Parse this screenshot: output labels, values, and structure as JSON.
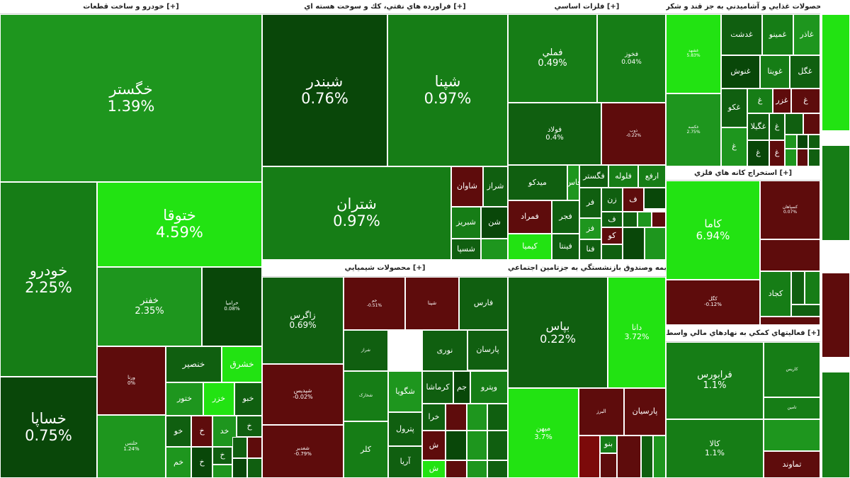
{
  "colors": {
    "strong_up": "#22e312",
    "mid_up": "#1e961e",
    "up": "#167d16",
    "slight_up": "#105f10",
    "dark_up": "#094709",
    "down": "#5e0c0c",
    "strong_down": "#7c0a0a",
    "header_bg": "#ffffff",
    "header_text": "#222222"
  },
  "chart_data": {
    "type": "treemap",
    "sectors": [
      {
        "name": "خودرو و ساخت قطعات [+]",
        "tiles": [
          {
            "symbol": "خگستر",
            "change": "1.39%",
            "color": "mid_up"
          },
          {
            "symbol": "خودرو",
            "change": "2.25%",
            "color": "up"
          },
          {
            "symbol": "ختوقا",
            "change": "4.59%",
            "color": "strong_up"
          },
          {
            "symbol": "خفنر",
            "change": "2.35%",
            "color": "mid_up"
          },
          {
            "symbol": "خرامیا",
            "change": "0.08%",
            "color": "dark_up"
          },
          {
            "symbol": "خساپا",
            "change": "0.75%",
            "color": "dark_up"
          },
          {
            "symbol": "ورنا",
            "change": "0%",
            "color": "down"
          },
          {
            "symbol": "خنصیر",
            "change": "",
            "color": "slight_up"
          },
          {
            "symbol": "خشرق",
            "change": "",
            "color": "strong_up"
          },
          {
            "symbol": "ختور",
            "change": "",
            "color": "mid_up"
          },
          {
            "symbol": "خزر",
            "change": "",
            "color": "strong_up"
          },
          {
            "symbol": "خبو",
            "change": "",
            "color": "slight_up"
          },
          {
            "symbol": "خلنس",
            "change": "1.24%",
            "color": "mid_up"
          },
          {
            "symbol": "خو",
            "change": "",
            "color": "slight_up"
          },
          {
            "symbol": "خ",
            "change": "",
            "color": "down"
          },
          {
            "symbol": "خد",
            "change": "",
            "color": "mid_up"
          },
          {
            "symbol": "خ",
            "change": "",
            "color": "slight_up"
          },
          {
            "symbol": "خم",
            "change": "",
            "color": "mid_up"
          },
          {
            "symbol": "خ",
            "change": "",
            "color": "dark_up"
          },
          {
            "symbol": "خ",
            "change": "",
            "color": "slight_up"
          },
          {
            "symbol": "",
            "change": "",
            "color": "slight_up"
          },
          {
            "symbol": "",
            "change": "",
            "color": "down"
          },
          {
            "symbol": "",
            "change": "",
            "color": "mid_up"
          },
          {
            "symbol": "",
            "change": "",
            "color": "dark_up"
          },
          {
            "symbol": "",
            "change": "",
            "color": "slight_up"
          },
          {
            "symbol": "",
            "change": "",
            "color": "mid_up"
          },
          {
            "symbol": "",
            "change": "",
            "color": "strong_up"
          },
          {
            "symbol": "",
            "change": "",
            "color": "down"
          },
          {
            "symbol": "",
            "change": "",
            "color": "slight_up"
          },
          {
            "symbol": "",
            "change": "",
            "color": "mid_up"
          },
          {
            "symbol": "",
            "change": "",
            "color": "dark_up"
          }
        ]
      },
      {
        "name": "فراورده هاي نفتي، كك و سوخت هسته اي [+]",
        "tiles": [
          {
            "symbol": "شبندر",
            "change": "0.76%",
            "color": "dark_up"
          },
          {
            "symbol": "شپنا",
            "change": "0.97%",
            "color": "up"
          },
          {
            "symbol": "شتران",
            "change": "0.97%",
            "color": "up"
          },
          {
            "symbol": "شاوان",
            "change": "",
            "color": "down"
          },
          {
            "symbol": "شراز",
            "change": "",
            "color": "slight_up"
          },
          {
            "symbol": "شبریز",
            "change": "",
            "color": "up"
          },
          {
            "symbol": "شن",
            "change": "",
            "color": "dark_up"
          },
          {
            "symbol": "شسپا",
            "change": "",
            "color": "slight_up"
          },
          {
            "symbol": "",
            "change": "",
            "color": "mid_up"
          }
        ]
      },
      {
        "name": "فلزات اساسي [+]",
        "tiles": [
          {
            "symbol": "فملي",
            "change": "0.49%",
            "color": "up"
          },
          {
            "symbol": "فخوز",
            "change": "0.04%",
            "color": "up"
          },
          {
            "symbol": "فولاد",
            "change": "0.4%",
            "color": "slight_up"
          },
          {
            "symbol": "ذوب",
            "change": "-0.22%",
            "color": "down"
          },
          {
            "symbol": "میدکو",
            "change": "",
            "color": "slight_up"
          },
          {
            "symbol": "فاس",
            "change": "",
            "color": "mid_up"
          },
          {
            "symbol": "فگستر",
            "change": "",
            "color": "slight_up"
          },
          {
            "symbol": "فلوله",
            "change": "",
            "color": "up"
          },
          {
            "symbol": "ارفع",
            "change": "",
            "color": "up"
          },
          {
            "symbol": "فمراد",
            "change": "",
            "color": "down"
          },
          {
            "symbol": "فجر",
            "change": "",
            "color": "slight_up"
          },
          {
            "symbol": "كيميا",
            "change": "",
            "color": "strong_up"
          },
          {
            "symbol": "فينتا",
            "change": "",
            "color": "slight_up"
          },
          {
            "symbol": "فر",
            "change": "",
            "color": "slight_up"
          },
          {
            "symbol": "زن",
            "change": "",
            "color": "slight_up"
          },
          {
            "symbol": "فز",
            "change": "",
            "color": "mid_up"
          },
          {
            "symbol": "فنا",
            "change": "",
            "color": "slight_up"
          },
          {
            "symbol": "ف",
            "change": "",
            "color": "down"
          },
          {
            "symbol": "ف",
            "change": "",
            "color": "slight_up"
          },
          {
            "symbol": "كو",
            "change": "",
            "color": "down"
          },
          {
            "symbol": "",
            "change": "",
            "color": "dark_up"
          },
          {
            "symbol": "",
            "change": "",
            "color": "slight_up"
          },
          {
            "symbol": "",
            "change": "",
            "color": "mid_up"
          },
          {
            "symbol": "",
            "change": "",
            "color": "down"
          },
          {
            "symbol": "",
            "change": "",
            "color": "slight_up"
          },
          {
            "symbol": "",
            "change": "",
            "color": "dark_up"
          },
          {
            "symbol": "",
            "change": "",
            "color": "mid_up"
          }
        ]
      },
      {
        "name": "محصولات غذايي و آشاميدني به جز قند و شكر [+]",
        "tiles": [
          {
            "symbol": "غشهد",
            "change": "5.83%",
            "color": "strong_up"
          },
          {
            "symbol": "غدشت",
            "change": "",
            "color": "slight_up"
          },
          {
            "symbol": "غمینو",
            "change": "",
            "color": "up"
          },
          {
            "symbol": "غاذر",
            "change": "",
            "color": "mid_up"
          },
          {
            "symbol": "غنوش",
            "change": "",
            "color": "dark_up"
          },
          {
            "symbol": "غويتا",
            "change": "",
            "color": "up"
          },
          {
            "symbol": "غگل",
            "change": "",
            "color": "slight_up"
          },
          {
            "symbol": "غكو",
            "change": "",
            "color": "slight_up"
          },
          {
            "symbol": "غ",
            "change": "",
            "color": "up"
          },
          {
            "symbol": "غزر",
            "change": "",
            "color": "down"
          },
          {
            "symbol": "غ",
            "change": "",
            "color": "down"
          },
          {
            "symbol": "غگیلا",
            "change": "",
            "color": "slight_up"
          },
          {
            "symbol": "غ",
            "change": "",
            "color": "slight_up"
          },
          {
            "symbol": "غكسه",
            "change": "2.75%",
            "color": "mid_up"
          },
          {
            "symbol": "غ",
            "change": "",
            "color": "mid_up"
          },
          {
            "symbol": "غ",
            "change": "",
            "color": "dark_up"
          },
          {
            "symbol": "غ",
            "change": "",
            "color": "down"
          },
          {
            "symbol": "",
            "change": "",
            "color": "slight_up"
          },
          {
            "symbol": "",
            "change": "",
            "color": "down"
          },
          {
            "symbol": "",
            "change": "",
            "color": "mid_up"
          },
          {
            "symbol": "",
            "change": "",
            "color": "dark_up"
          },
          {
            "symbol": "",
            "change": "",
            "color": "slight_up"
          },
          {
            "symbol": "",
            "change": "",
            "color": "mid_up"
          },
          {
            "symbol": "",
            "change": "",
            "color": "down"
          },
          {
            "symbol": "",
            "change": "",
            "color": "slight_up"
          }
        ]
      },
      {
        "name": "استخراج كانه هاي فلزي [+]",
        "tiles": [
          {
            "symbol": "كاما",
            "change": "6.94%",
            "color": "strong_up"
          },
          {
            "symbol": "کسپاهان",
            "change": "0.07%",
            "color": "down"
          },
          {
            "symbol": "",
            "change": "",
            "color": "down"
          },
          {
            "symbol": "كگل",
            "change": "-0.12%",
            "color": "down"
          },
          {
            "symbol": "كجاد",
            "change": "",
            "color": "up"
          },
          {
            "symbol": "",
            "change": "",
            "color": "slight_up"
          },
          {
            "symbol": "",
            "change": "",
            "color": "up"
          },
          {
            "symbol": "",
            "change": "",
            "color": "slight_up"
          },
          {
            "symbol": "",
            "change": "",
            "color": "down"
          }
        ]
      },
      {
        "name": "محصولات شيميايي [+]",
        "tiles": [
          {
            "symbol": "زاگرس",
            "change": "0.69%",
            "color": "slight_up"
          },
          {
            "symbol": "شپدیس",
            "change": "-0.02%",
            "color": "down"
          },
          {
            "symbol": "شغدیر",
            "change": "-0.79%",
            "color": "down"
          },
          {
            "symbol": "جم",
            "change": "-0.51%",
            "color": "down"
          },
          {
            "symbol": "شپنا",
            "change": "",
            "color": "down"
          },
          {
            "symbol": "فارس",
            "change": "",
            "color": "slight_up"
          },
          {
            "symbol": "شراز",
            "change": "",
            "color": "slight_up"
          },
          {
            "symbol": "پارسان",
            "change": "",
            "color": "slight_up"
          },
          {
            "symbol": "نوری",
            "change": "",
            "color": "slight_up"
          },
          {
            "symbol": "شگويا",
            "change": "",
            "color": "mid_up"
          },
          {
            "symbol": "كرماشا",
            "change": "",
            "color": "slight_up"
          },
          {
            "symbol": "جم",
            "change": "",
            "color": "dark_up"
          },
          {
            "symbol": "وپترو",
            "change": "",
            "color": "up"
          },
          {
            "symbol": "شخارک",
            "change": "",
            "color": "up"
          },
          {
            "symbol": "پترول",
            "change": "",
            "color": "slight_up"
          },
          {
            "symbol": "کلر",
            "change": "",
            "color": "up"
          },
          {
            "symbol": "آريا",
            "change": "",
            "color": "slight_up"
          },
          {
            "symbol": "خرا",
            "change": "",
            "color": "slight_up"
          },
          {
            "symbol": "ش",
            "change": "",
            "color": "down"
          },
          {
            "symbol": "ش",
            "change": "",
            "color": "strong_up"
          },
          {
            "symbol": "",
            "change": "",
            "color": "down"
          },
          {
            "symbol": "",
            "change": "",
            "color": "mid_up"
          },
          {
            "symbol": "",
            "change": "",
            "color": "slight_up"
          },
          {
            "symbol": "",
            "change": "",
            "color": "dark_up"
          },
          {
            "symbol": "",
            "change": "",
            "color": "mid_up"
          },
          {
            "symbol": "",
            "change": "",
            "color": "slight_up"
          },
          {
            "symbol": "",
            "change": "",
            "color": "down"
          },
          {
            "symbol": "",
            "change": "",
            "color": "mid_up"
          },
          {
            "symbol": "",
            "change": "",
            "color": "slight_up"
          }
        ]
      },
      {
        "name": "بيمه وصندوق بازنشستگي به جزتامين اجتماعي [+]",
        "tiles": [
          {
            "symbol": "بپاس",
            "change": "0.22%",
            "color": "slight_up"
          },
          {
            "symbol": "دانا",
            "change": "3.72%",
            "color": "strong_up"
          },
          {
            "symbol": "میهن",
            "change": "3.7%",
            "color": "strong_up"
          },
          {
            "symbol": "البرز",
            "change": "",
            "color": "down"
          },
          {
            "symbol": "پارسيان",
            "change": "",
            "color": "down"
          },
          {
            "symbol": "",
            "change": "",
            "color": "strong_down"
          },
          {
            "symbol": "بنو",
            "change": "",
            "color": "up"
          },
          {
            "symbol": "",
            "change": "",
            "color": "down"
          },
          {
            "symbol": "",
            "change": "",
            "color": "down"
          },
          {
            "symbol": "",
            "change": "",
            "color": "slight_up"
          },
          {
            "symbol": "",
            "change": "",
            "color": "mid_up"
          }
        ]
      },
      {
        "name": "فعاليتهاي كمكي به نهادهاي مالي واسط [+]",
        "tiles": [
          {
            "symbol": "فرابورس",
            "change": "1.1%",
            "color": "up"
          },
          {
            "symbol": "کاریس",
            "change": "",
            "color": "up"
          },
          {
            "symbol": "تامین",
            "change": "",
            "color": "up"
          },
          {
            "symbol": "كالا",
            "change": "1.1%",
            "color": "up"
          },
          {
            "symbol": "",
            "change": "",
            "color": "mid_up"
          },
          {
            "symbol": "تماوند",
            "change": "",
            "color": "down"
          }
        ]
      },
      {
        "name": "",
        "tiles": [
          {
            "symbol": "",
            "change": "",
            "color": "strong_up"
          },
          {
            "symbol": "",
            "change": "",
            "color": "up"
          },
          {
            "symbol": "",
            "change": "",
            "color": "down"
          },
          {
            "symbol": "",
            "change": "",
            "color": "up"
          }
        ]
      }
    ]
  }
}
